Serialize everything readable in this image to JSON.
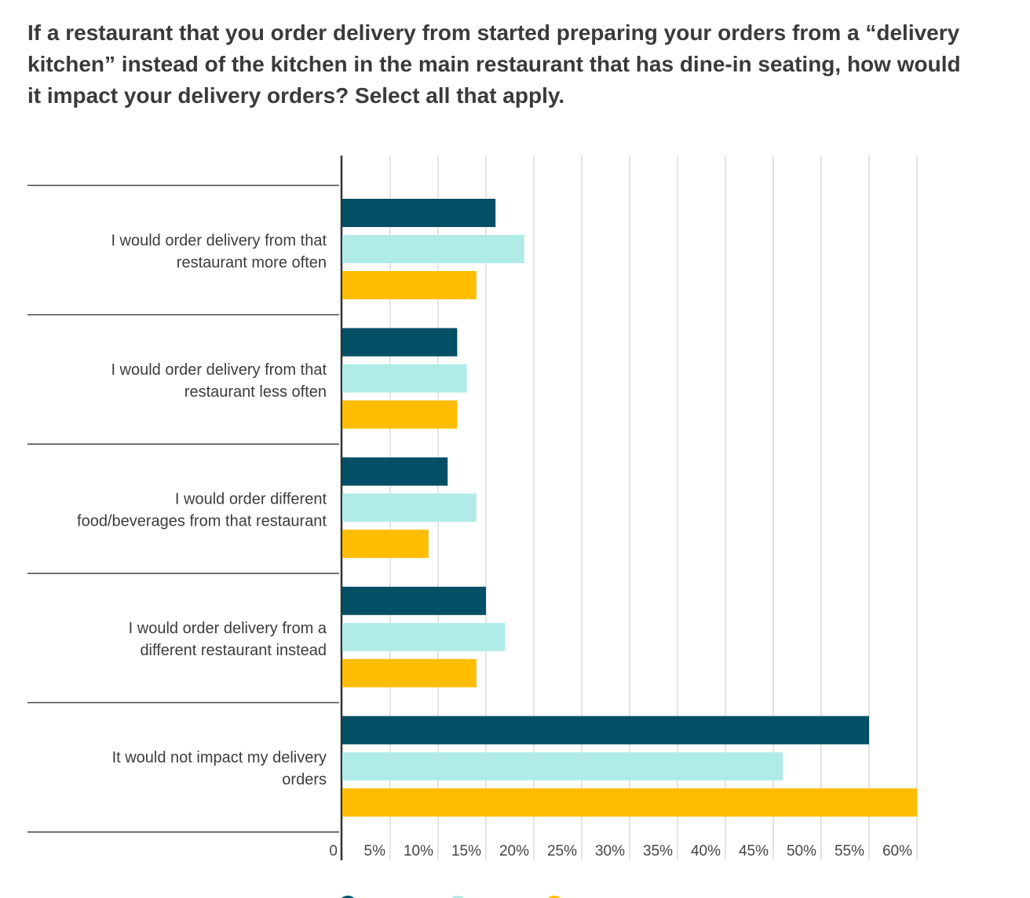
{
  "chart_data": {
    "type": "bar",
    "orientation": "horizontal",
    "title": "If a restaurant that you order delivery from started preparing your orders from a “delivery kitchen” instead of the kitchen in the main restaurant that has dine-in seating, how would it impact your delivery orders? Select all that apply.",
    "categories": [
      [
        "I would order delivery from that",
        "restaurant more often"
      ],
      [
        "I would order delivery from that",
        "restaurant less often"
      ],
      [
        "I would order different",
        "food/beverages from that restaurant"
      ],
      [
        "I would order delivery from a",
        "different restaurant instead"
      ],
      [
        "It would not impact my delivery",
        "orders"
      ]
    ],
    "series": [
      {
        "color": "#024f66",
        "values": [
          16,
          12,
          11,
          15,
          55
        ]
      },
      {
        "color": "#b1ebe7",
        "values": [
          19,
          13,
          14,
          17,
          46
        ]
      },
      {
        "color": "#ffbd00",
        "values": [
          14,
          12,
          9,
          14,
          60
        ]
      }
    ],
    "xlim": [
      0,
      60
    ],
    "xticks": [
      "0",
      "5%",
      "10%",
      "15%",
      "20%",
      "25%",
      "30%",
      "35%",
      "40%",
      "45%",
      "50%",
      "55%",
      "60%"
    ],
    "grid": true,
    "legend": "bottom"
  }
}
